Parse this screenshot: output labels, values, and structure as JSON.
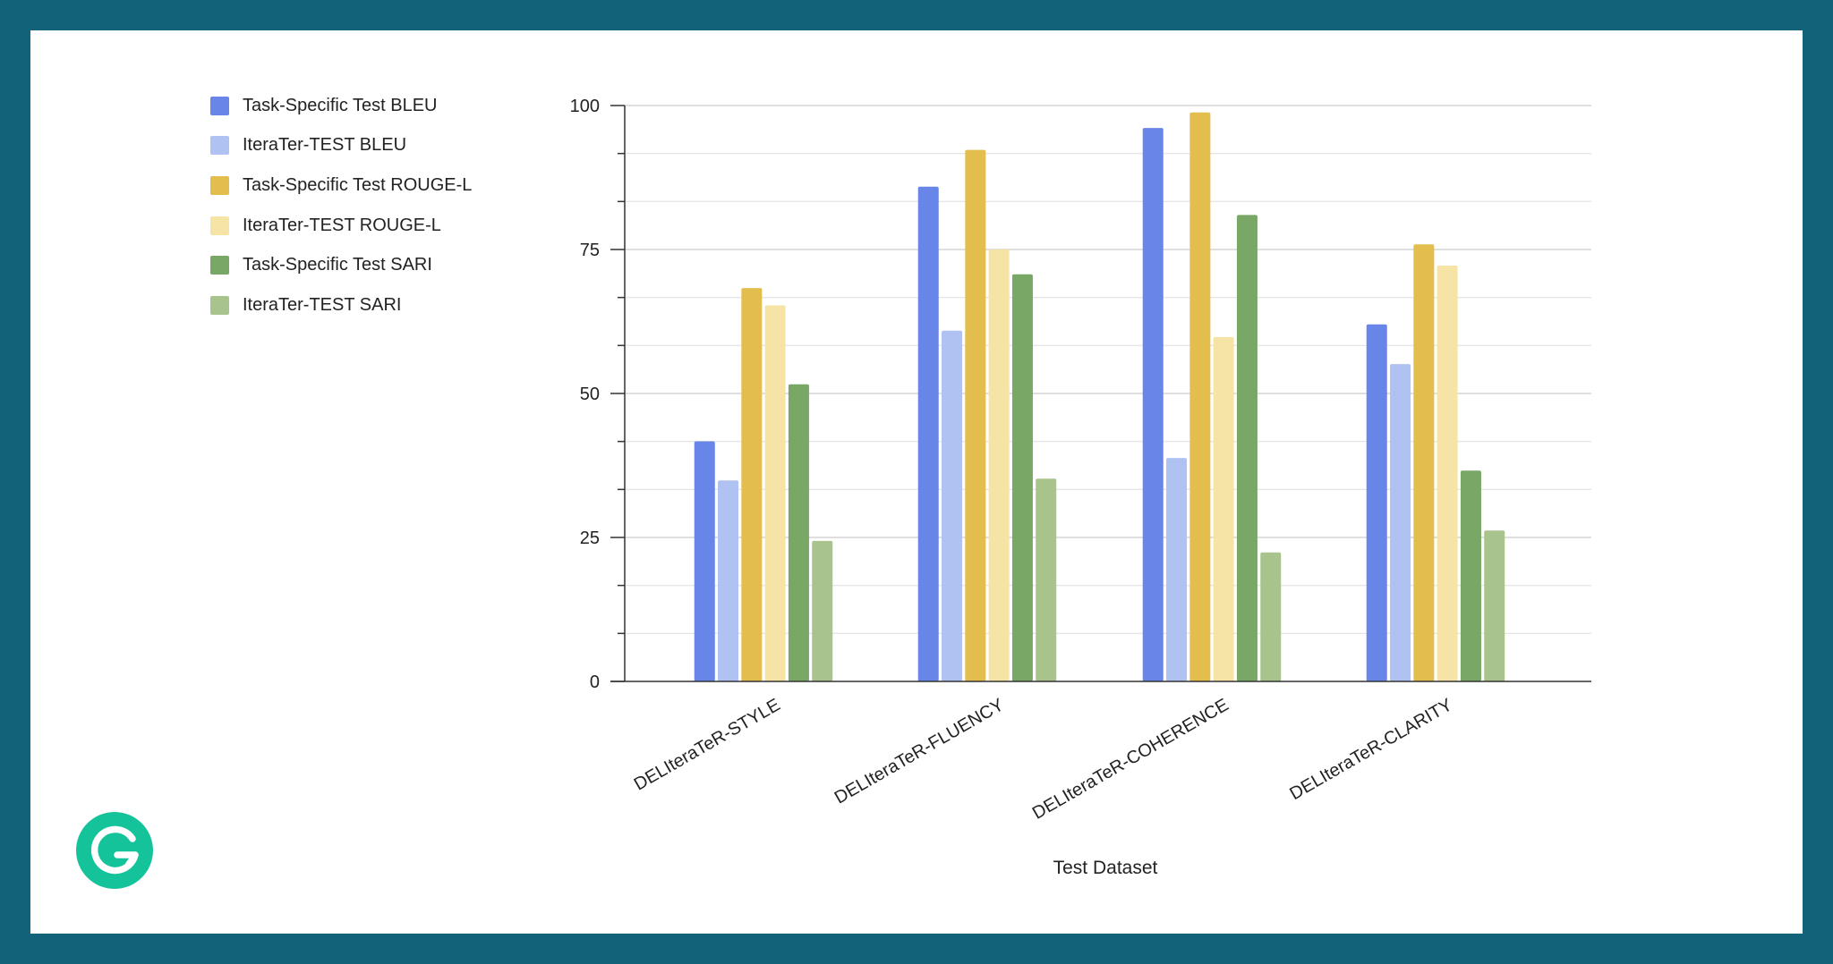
{
  "chart_data": {
    "type": "bar",
    "categories": [
      "DELIteraTeR-STYLE",
      "DELIteraTeR-FLUENCY",
      "DELIteraTeR-COHERENCE",
      "DELIteraTeR-CLARITY"
    ],
    "series": [
      {
        "name": "Task-Specific Test BLEU",
        "color": "#6786e7",
        "values": [
          41.7,
          85.9,
          96.1,
          62.0
        ]
      },
      {
        "name": "IteraTer-TEST BLEU",
        "color": "#b0c2f1",
        "values": [
          34.9,
          60.9,
          38.8,
          55.1
        ]
      },
      {
        "name": "Task-Specific Test ROUGE-L",
        "color": "#e3bd4d",
        "values": [
          68.3,
          92.3,
          98.8,
          75.9
        ]
      },
      {
        "name": "IteraTer-TEST ROUGE-L",
        "color": "#f6e4a6",
        "values": [
          65.3,
          75.0,
          59.8,
          72.2
        ]
      },
      {
        "name": "Task-Specific Test SARI",
        "color": "#79a866",
        "values": [
          51.6,
          70.7,
          81.0,
          36.6
        ]
      },
      {
        "name": "IteraTer-TEST SARI",
        "color": "#a9c38c",
        "values": [
          24.4,
          35.2,
          22.4,
          26.2
        ]
      }
    ],
    "xlabel": "Test Dataset",
    "ylabel": "",
    "ylim": [
      0,
      100
    ],
    "yticks": [
      "0",
      "25",
      "50",
      "75",
      "100"
    ],
    "grid": true,
    "legend": "left"
  },
  "brand": {
    "logo_icon": "grammarly-logo-icon",
    "logo_color": "#15c39a"
  },
  "colors": {
    "frame": "#12627a",
    "background": "#ffffff"
  }
}
